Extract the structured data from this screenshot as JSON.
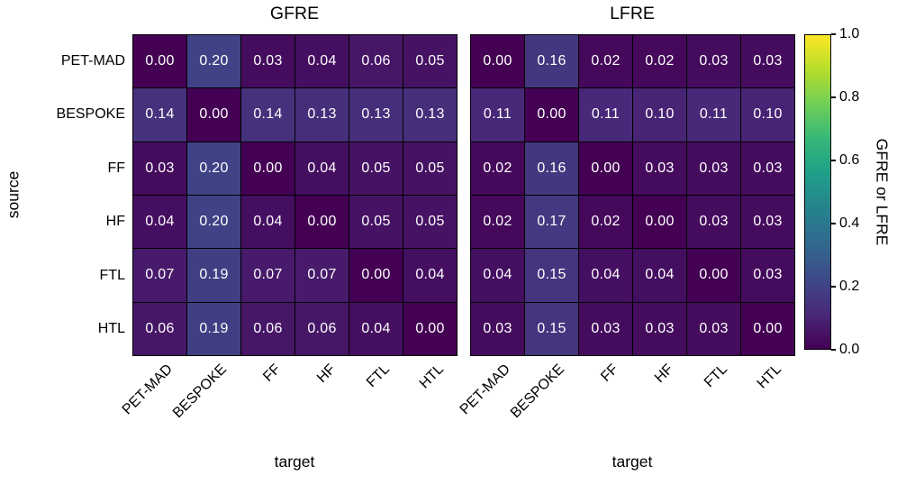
{
  "figure": {
    "background": "#ffffff",
    "row_axis_label": "source",
    "col_axis_label": "target",
    "annotation_color": "#ffffff",
    "grid_line_color": "#000000"
  },
  "chart_data": [
    {
      "type": "heatmap",
      "title": "GFRE",
      "xlabel": "target",
      "ylabel": "source",
      "x_categories": [
        "PET-MAD",
        "BESPOKE",
        "FF",
        "HF",
        "FTL",
        "HTL"
      ],
      "y_categories": [
        "PET-MAD",
        "BESPOKE",
        "FF",
        "HF",
        "FTL",
        "HTL"
      ],
      "values": [
        [
          0.0,
          0.2,
          0.03,
          0.04,
          0.06,
          0.05
        ],
        [
          0.14,
          0.0,
          0.14,
          0.13,
          0.13,
          0.13
        ],
        [
          0.03,
          0.2,
          0.0,
          0.04,
          0.05,
          0.05
        ],
        [
          0.04,
          0.2,
          0.04,
          0.0,
          0.05,
          0.05
        ],
        [
          0.07,
          0.19,
          0.07,
          0.07,
          0.0,
          0.04
        ],
        [
          0.06,
          0.19,
          0.06,
          0.06,
          0.04,
          0.0
        ]
      ],
      "vmin": 0.0,
      "vmax": 1.0,
      "colormap": "viridis",
      "annotation_decimals": 2
    },
    {
      "type": "heatmap",
      "title": "LFRE",
      "xlabel": "target",
      "ylabel": "source",
      "x_categories": [
        "PET-MAD",
        "BESPOKE",
        "FF",
        "HF",
        "FTL",
        "HTL"
      ],
      "y_categories": [
        "PET-MAD",
        "BESPOKE",
        "FF",
        "HF",
        "FTL",
        "HTL"
      ],
      "values": [
        [
          0.0,
          0.16,
          0.02,
          0.02,
          0.03,
          0.03
        ],
        [
          0.11,
          0.0,
          0.11,
          0.1,
          0.11,
          0.1
        ],
        [
          0.02,
          0.16,
          0.0,
          0.03,
          0.03,
          0.03
        ],
        [
          0.02,
          0.17,
          0.02,
          0.0,
          0.03,
          0.03
        ],
        [
          0.04,
          0.15,
          0.04,
          0.04,
          0.0,
          0.03
        ],
        [
          0.03,
          0.15,
          0.03,
          0.03,
          0.03,
          0.0
        ]
      ],
      "vmin": 0.0,
      "vmax": 1.0,
      "colormap": "viridis",
      "annotation_decimals": 2
    }
  ],
  "colorbar": {
    "label": "GFRE or LFRE",
    "vmin": 0.0,
    "vmax": 1.0,
    "colormap": "viridis",
    "ticks": [
      {
        "value": 1.0,
        "label": "1.0"
      },
      {
        "value": 0.8,
        "label": "0.8"
      },
      {
        "value": 0.6,
        "label": "0.6"
      },
      {
        "value": 0.4,
        "label": "0.4"
      },
      {
        "value": 0.2,
        "label": "0.2"
      },
      {
        "value": 0.0,
        "label": "0.0"
      }
    ],
    "gradient_stops": [
      "#440154",
      "#482878",
      "#3e4989",
      "#31688e",
      "#26828e",
      "#1f9e89",
      "#35b779",
      "#6ece58",
      "#b5de2b",
      "#fde725"
    ]
  }
}
